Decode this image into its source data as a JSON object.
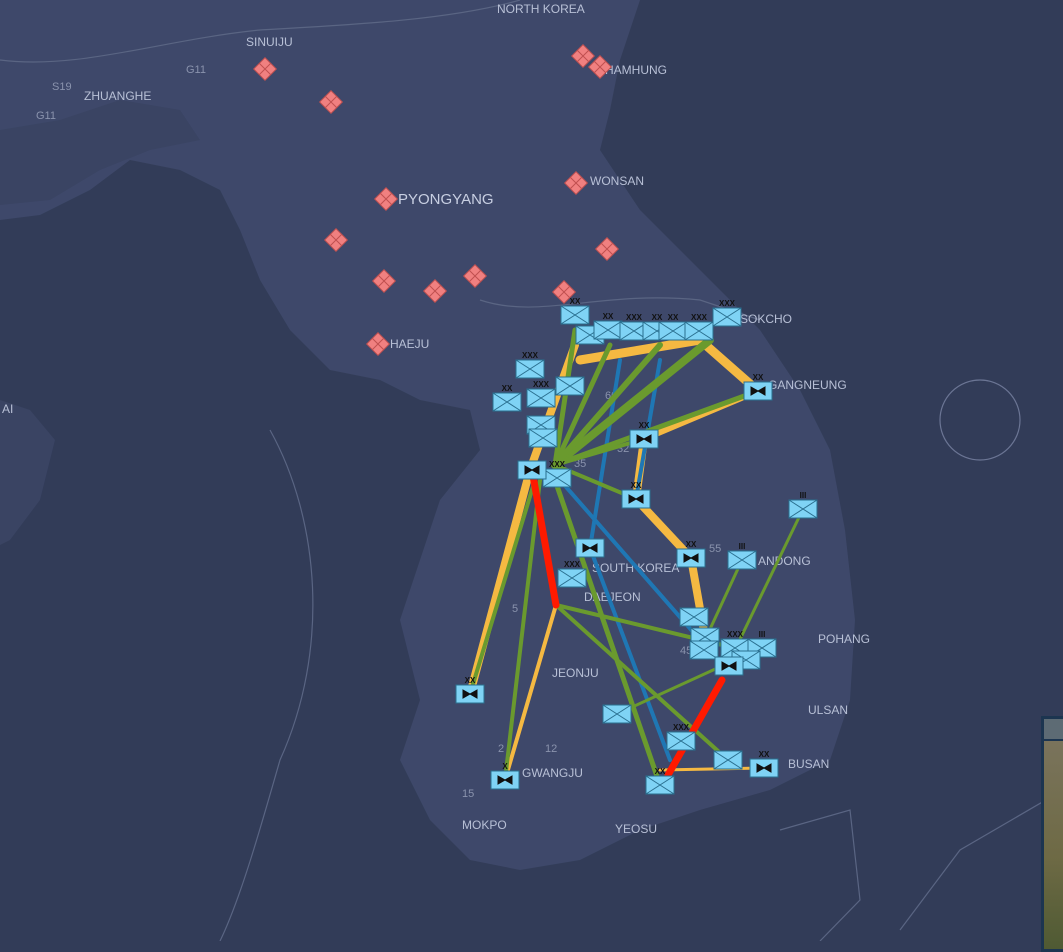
{
  "map": {
    "country_labels": {
      "north": "NORTH KOREA",
      "south": "SOUTH KOREA"
    },
    "cities": [
      "SINUIJU",
      "ZHUANGHE",
      "HAMHUNG",
      "WONSAN",
      "PYONGYANG",
      "HAEJU",
      "SOKCHO",
      "GANGNEUNG",
      "ANDONG",
      "DAEJEON",
      "JEONJU",
      "POHANG",
      "ULSAN",
      "GWANGJU",
      "BUSAN",
      "MOKPO",
      "YEOSU",
      "AI"
    ],
    "roads": [
      "G11",
      "S19",
      "G11",
      "60",
      "35",
      "32",
      "55",
      "5",
      "45",
      "12",
      "2",
      "15"
    ],
    "colors": {
      "water": "#323c58",
      "land": "#3e486a",
      "friendly_unit": "#7fd3f5",
      "enemy_unit": "#f08080",
      "supply_green": "#6a9a2e",
      "supply_yellow": "#f5b942",
      "supply_blue": "#1f77b4",
      "contested_red": "#ff1a00"
    }
  },
  "friendly_units": {
    "infantry_echelons": [
      "XX",
      "",
      "XX",
      "XXX",
      "XX",
      "XX",
      "XXX",
      "XXX",
      "XXX",
      "",
      "XX",
      "XXX",
      "",
      "",
      "XXX",
      "III",
      "III",
      "XXX",
      "",
      "",
      "",
      "XXX",
      "III",
      "",
      "",
      "XXX",
      "",
      "XX"
    ],
    "armor_echelons": [
      "XX",
      "XX",
      "",
      "XX",
      "",
      "XX",
      "",
      "XX",
      "X",
      "XX"
    ]
  },
  "enemy_units": {
    "count": 13,
    "symbol": "diamond-grid-icon"
  },
  "minimap": {
    "visible": true
  }
}
